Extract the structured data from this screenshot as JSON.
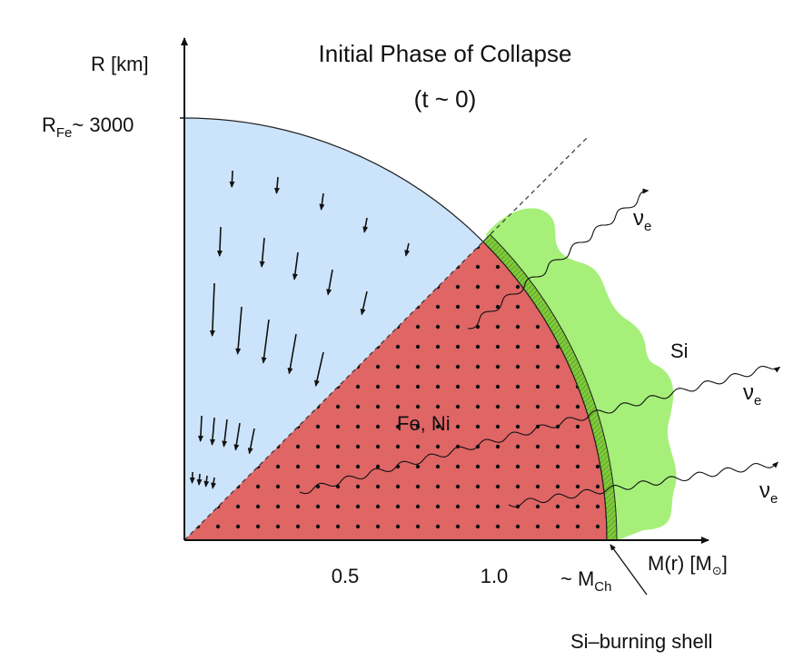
{
  "title": {
    "line1": "Initial Phase of Collapse",
    "line2": "(t ~ 0)"
  },
  "y_axis": {
    "label": "R [km]",
    "radius_label": {
      "main": "R",
      "sub": "Fe",
      "rest": "~ 3000"
    }
  },
  "x_axis": {
    "label": {
      "main": "M(r) [M",
      "sub": "⊙",
      "end": "]"
    },
    "ticks": [
      "0.5",
      "1.0"
    ],
    "chandrasekhar": {
      "main": "~ M",
      "sub": "Ch"
    }
  },
  "regions": {
    "core": "Fe, Ni",
    "outer": "Si",
    "shell": "Si–burning shell"
  },
  "neutrinos": [
    {
      "main": "ν",
      "sub": "e"
    },
    {
      "main": "ν",
      "sub": "e"
    },
    {
      "main": "ν",
      "sub": "e"
    }
  ]
}
